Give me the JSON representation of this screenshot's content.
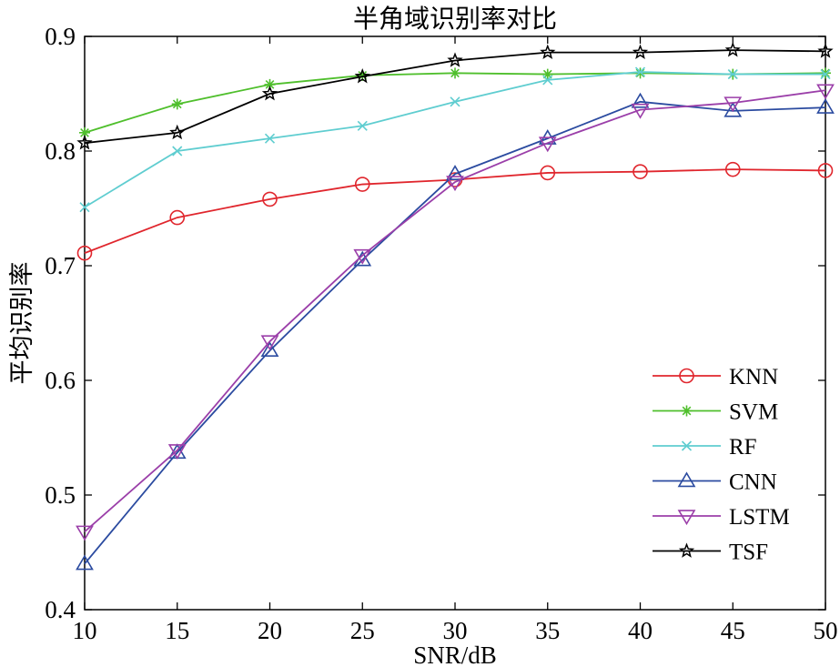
{
  "chart_data": {
    "type": "line",
    "title": "半角域识别率对比",
    "xlabel": "SNR/dB",
    "ylabel": "平均识别率",
    "x": [
      10,
      15,
      20,
      25,
      30,
      35,
      40,
      45,
      50
    ],
    "xlim": [
      10,
      50
    ],
    "ylim": [
      0.4,
      0.9
    ],
    "xticks": [
      "10",
      "15",
      "20",
      "25",
      "30",
      "35",
      "40",
      "45",
      "50"
    ],
    "yticks": [
      "0.4",
      "0.5",
      "0.6",
      "0.7",
      "0.8",
      "0.9"
    ],
    "grid": false,
    "legend_position": "bottom-right",
    "series": [
      {
        "name": "KNN",
        "color": "#e0262d",
        "marker": "circle",
        "values": [
          0.711,
          0.742,
          0.758,
          0.771,
          0.775,
          0.781,
          0.782,
          0.784,
          0.783
        ]
      },
      {
        "name": "SVM",
        "color": "#4fbf2c",
        "marker": "asterisk",
        "values": [
          0.816,
          0.841,
          0.858,
          0.866,
          0.868,
          0.867,
          0.868,
          0.867,
          0.868
        ]
      },
      {
        "name": "RF",
        "color": "#5fcdd0",
        "marker": "x",
        "values": [
          0.751,
          0.8,
          0.811,
          0.822,
          0.843,
          0.862,
          0.869,
          0.867,
          0.867
        ]
      },
      {
        "name": "CNN",
        "color": "#2b4ba0",
        "marker": "triangle-up",
        "values": [
          0.44,
          0.537,
          0.626,
          0.705,
          0.78,
          0.811,
          0.843,
          0.835,
          0.838
        ]
      },
      {
        "name": "LSTM",
        "color": "#9b3fa9",
        "marker": "triangle-down",
        "values": [
          0.468,
          0.539,
          0.634,
          0.709,
          0.773,
          0.807,
          0.836,
          0.842,
          0.853
        ]
      },
      {
        "name": "TSF",
        "color": "#000000",
        "marker": "star",
        "values": [
          0.807,
          0.816,
          0.85,
          0.865,
          0.879,
          0.886,
          0.886,
          0.888,
          0.887
        ]
      }
    ]
  }
}
